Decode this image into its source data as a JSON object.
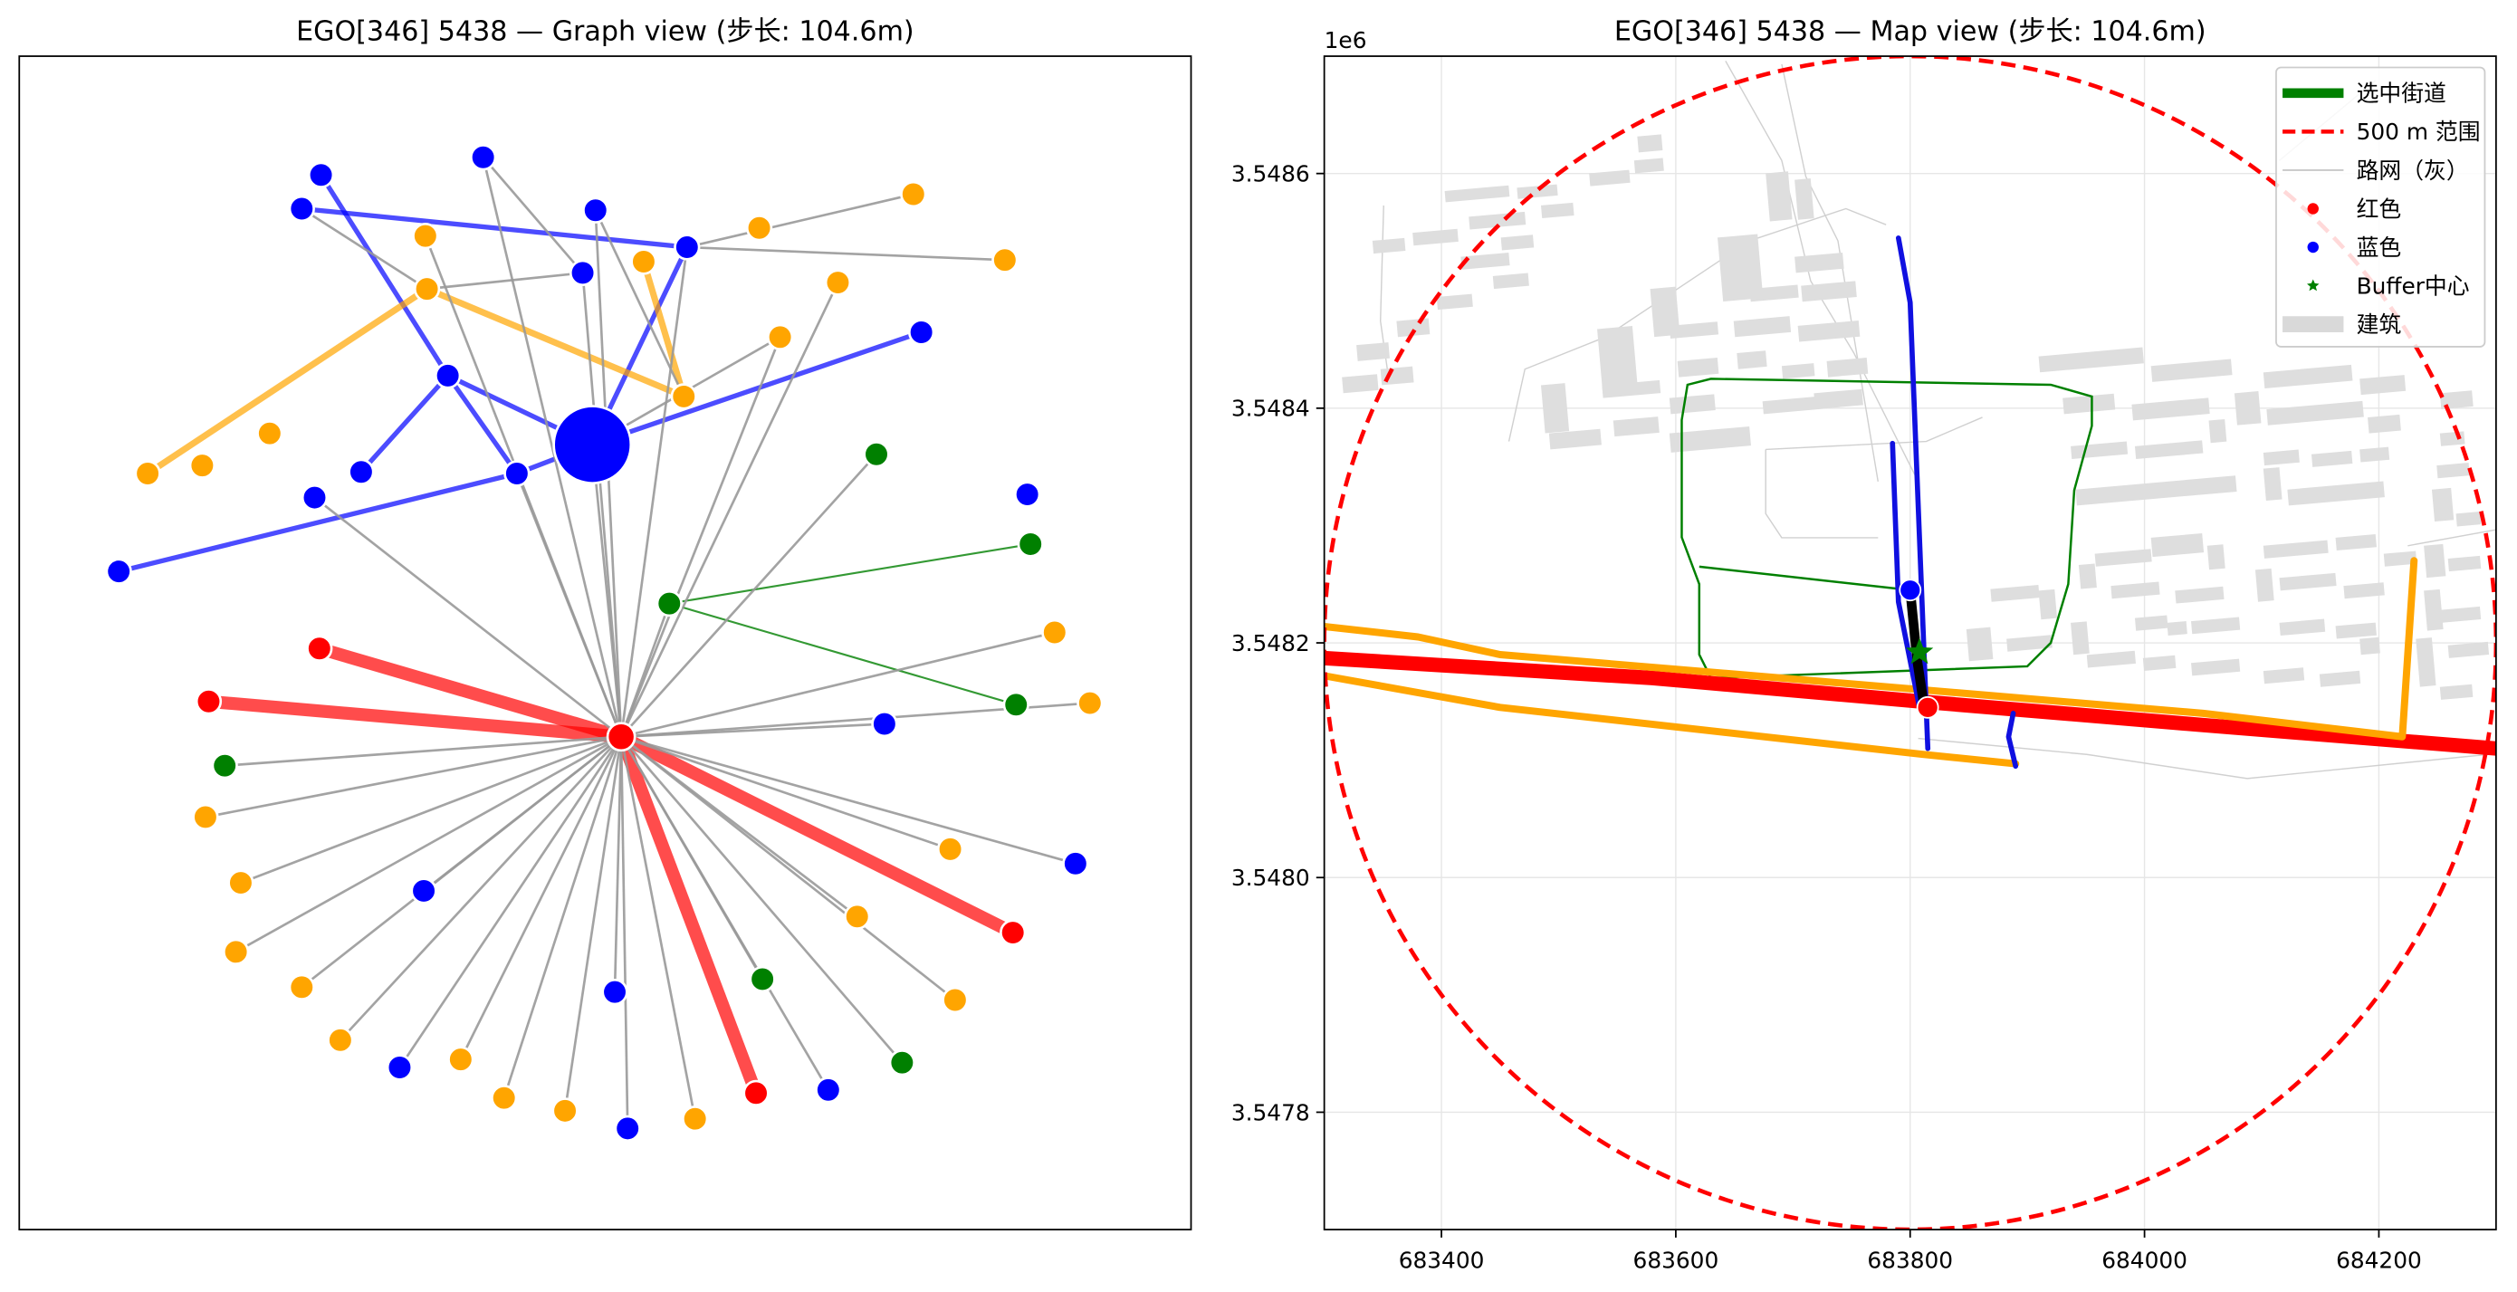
{
  "chart_data": [
    {
      "type": "network",
      "title": "EGO[346] 5438 — Graph view (步长: 104.6m)",
      "colors": {
        "red": "#ff0000",
        "blue": "#0000ff",
        "orange": "#ffa500",
        "green": "#008000",
        "gray": "#999999"
      },
      "nodes": [
        {
          "id": "ego",
          "x": 369,
          "y": 277,
          "color": "blue",
          "big": true
        },
        {
          "id": "hub",
          "x": 387,
          "y": 459,
          "color": "red"
        },
        {
          "id": "g1",
          "x": 417,
          "y": 376,
          "color": "green"
        },
        {
          "id": "b1",
          "x": 200,
          "y": 109,
          "color": "blue"
        },
        {
          "id": "b2",
          "x": 301,
          "y": 98,
          "color": "blue"
        },
        {
          "id": "b3",
          "x": 188,
          "y": 130,
          "color": "blue"
        },
        {
          "id": "b4",
          "x": 371,
          "y": 131,
          "color": "blue"
        },
        {
          "id": "b5",
          "x": 363,
          "y": 170,
          "color": "blue"
        },
        {
          "id": "b6",
          "x": 428,
          "y": 154,
          "color": "blue"
        },
        {
          "id": "b7",
          "x": 279,
          "y": 234,
          "color": "blue"
        },
        {
          "id": "b8",
          "x": 225,
          "y": 294,
          "color": "blue"
        },
        {
          "id": "b9",
          "x": 322,
          "y": 295,
          "color": "blue"
        },
        {
          "id": "b10",
          "x": 196,
          "y": 310,
          "color": "blue"
        },
        {
          "id": "b11",
          "x": 574,
          "y": 207,
          "color": "blue"
        },
        {
          "id": "b12",
          "x": 74,
          "y": 356,
          "color": "blue"
        },
        {
          "id": "b13",
          "x": 640,
          "y": 308,
          "color": "blue"
        },
        {
          "id": "b14",
          "x": 551,
          "y": 451,
          "color": "blue"
        },
        {
          "id": "b15",
          "x": 670,
          "y": 538,
          "color": "blue"
        },
        {
          "id": "b16",
          "x": 264,
          "y": 555,
          "color": "blue"
        },
        {
          "id": "b17",
          "x": 383,
          "y": 618,
          "color": "blue"
        },
        {
          "id": "b18",
          "x": 249,
          "y": 665,
          "color": "blue"
        },
        {
          "id": "b19",
          "x": 391,
          "y": 703,
          "color": "blue"
        },
        {
          "id": "b20",
          "x": 516,
          "y": 679,
          "color": "blue"
        },
        {
          "id": "o1",
          "x": 569,
          "y": 121,
          "color": "orange"
        },
        {
          "id": "o2",
          "x": 265,
          "y": 147,
          "color": "orange"
        },
        {
          "id": "o3",
          "x": 473,
          "y": 142,
          "color": "orange"
        },
        {
          "id": "o4",
          "x": 401,
          "y": 163,
          "color": "orange"
        },
        {
          "id": "o5",
          "x": 626,
          "y": 162,
          "color": "orange"
        },
        {
          "id": "o6",
          "x": 266,
          "y": 180,
          "color": "orange"
        },
        {
          "id": "o7",
          "x": 522,
          "y": 176,
          "color": "orange"
        },
        {
          "id": "o8",
          "x": 486,
          "y": 210,
          "color": "orange"
        },
        {
          "id": "o9",
          "x": 426,
          "y": 247,
          "color": "orange"
        },
        {
          "id": "o10",
          "x": 168,
          "y": 270,
          "color": "orange"
        },
        {
          "id": "o11",
          "x": 92,
          "y": 295,
          "color": "orange"
        },
        {
          "id": "o12",
          "x": 126,
          "y": 290,
          "color": "orange"
        },
        {
          "id": "o13",
          "x": 657,
          "y": 394,
          "color": "orange"
        },
        {
          "id": "o14",
          "x": 679,
          "y": 438,
          "color": "orange"
        },
        {
          "id": "o15",
          "x": 128,
          "y": 509,
          "color": "orange"
        },
        {
          "id": "o16",
          "x": 592,
          "y": 529,
          "color": "orange"
        },
        {
          "id": "o17",
          "x": 150,
          "y": 550,
          "color": "orange"
        },
        {
          "id": "o18",
          "x": 534,
          "y": 571,
          "color": "orange"
        },
        {
          "id": "o19",
          "x": 147,
          "y": 593,
          "color": "orange"
        },
        {
          "id": "o20",
          "x": 188,
          "y": 615,
          "color": "orange"
        },
        {
          "id": "o21",
          "x": 595,
          "y": 623,
          "color": "orange"
        },
        {
          "id": "o22",
          "x": 212,
          "y": 648,
          "color": "orange"
        },
        {
          "id": "o23",
          "x": 287,
          "y": 660,
          "color": "orange"
        },
        {
          "id": "o24",
          "x": 314,
          "y": 684,
          "color": "orange"
        },
        {
          "id": "o25",
          "x": 352,
          "y": 692,
          "color": "orange"
        },
        {
          "id": "o26",
          "x": 433,
          "y": 697,
          "color": "orange"
        },
        {
          "id": "g2",
          "x": 546,
          "y": 283,
          "color": "green"
        },
        {
          "id": "g3",
          "x": 642,
          "y": 339,
          "color": "green"
        },
        {
          "id": "g4",
          "x": 633,
          "y": 439,
          "color": "green"
        },
        {
          "id": "g5",
          "x": 140,
          "y": 477,
          "color": "green"
        },
        {
          "id": "g6",
          "x": 475,
          "y": 610,
          "color": "green"
        },
        {
          "id": "g7",
          "x": 562,
          "y": 662,
          "color": "green"
        },
        {
          "id": "r1",
          "x": 199,
          "y": 404,
          "color": "red"
        },
        {
          "id": "r2",
          "x": 130,
          "y": 437,
          "color": "red"
        },
        {
          "id": "r3",
          "x": 631,
          "y": 581,
          "color": "red"
        },
        {
          "id": "r4",
          "x": 471,
          "y": 681,
          "color": "red"
        }
      ],
      "edges": [
        [
          "hub",
          "r1",
          "red"
        ],
        [
          "hub",
          "r2",
          "red"
        ],
        [
          "hub",
          "r3",
          "red"
        ],
        [
          "hub",
          "r4",
          "red"
        ],
        [
          "ego",
          "b7",
          "blue"
        ],
        [
          "ego",
          "b9",
          "blue"
        ],
        [
          "ego",
          "b6",
          "blue"
        ],
        [
          "ego",
          "b11",
          "blue"
        ],
        [
          "b3",
          "b6",
          "blue"
        ],
        [
          "b1",
          "b7",
          "blue"
        ],
        [
          "b7",
          "b8",
          "blue"
        ],
        [
          "b7",
          "b9",
          "blue"
        ],
        [
          "b9",
          "b12",
          "blue"
        ],
        [
          "o6",
          "o9",
          "orange"
        ],
        [
          "o6",
          "o11",
          "orange"
        ],
        [
          "o4",
          "o9",
          "orange"
        ],
        [
          "g1",
          "g3",
          "green"
        ],
        [
          "g1",
          "g4",
          "green"
        ],
        [
          "hub",
          "ego",
          "gray"
        ],
        [
          "hub",
          "b2",
          "gray"
        ],
        [
          "hub",
          "b4",
          "gray"
        ],
        [
          "hub",
          "b5",
          "gray"
        ],
        [
          "hub",
          "b6",
          "gray"
        ],
        [
          "hub",
          "o2",
          "gray"
        ],
        [
          "hub",
          "o8",
          "gray"
        ],
        [
          "hub",
          "o7",
          "gray"
        ],
        [
          "hub",
          "b10",
          "gray"
        ],
        [
          "hub",
          "b9",
          "gray"
        ],
        [
          "hub",
          "g2",
          "gray"
        ],
        [
          "hub",
          "o13",
          "gray"
        ],
        [
          "hub",
          "o14",
          "gray"
        ],
        [
          "hub",
          "b14",
          "gray"
        ],
        [
          "hub",
          "b15",
          "gray"
        ],
        [
          "hub",
          "g5",
          "gray"
        ],
        [
          "hub",
          "o15",
          "gray"
        ],
        [
          "hub",
          "o16",
          "gray"
        ],
        [
          "hub",
          "o17",
          "gray"
        ],
        [
          "hub",
          "o18",
          "gray"
        ],
        [
          "hub",
          "o19",
          "gray"
        ],
        [
          "hub",
          "b16",
          "gray"
        ],
        [
          "hub",
          "o20",
          "gray"
        ],
        [
          "hub",
          "o21",
          "gray"
        ],
        [
          "hub",
          "o22",
          "gray"
        ],
        [
          "hub",
          "o23",
          "gray"
        ],
        [
          "hub",
          "o24",
          "gray"
        ],
        [
          "hub",
          "o25",
          "gray"
        ],
        [
          "hub",
          "b17",
          "gray"
        ],
        [
          "hub",
          "b18",
          "gray"
        ],
        [
          "hub",
          "b19",
          "gray"
        ],
        [
          "hub",
          "o26",
          "gray"
        ],
        [
          "hub",
          "b20",
          "gray"
        ],
        [
          "hub",
          "g6",
          "gray"
        ],
        [
          "hub",
          "g7",
          "gray"
        ],
        [
          "hub",
          "g1",
          "gray"
        ],
        [
          "b3",
          "o6",
          "gray"
        ],
        [
          "o6",
          "b5",
          "gray"
        ],
        [
          "b4",
          "o9",
          "gray"
        ],
        [
          "b6",
          "o1",
          "gray"
        ],
        [
          "b6",
          "o5",
          "gray"
        ],
        [
          "ego",
          "o8",
          "gray"
        ],
        [
          "b2",
          "b5",
          "gray"
        ]
      ]
    },
    {
      "type": "map",
      "title": "EGO[346] 5438 — Map view (步长: 104.6m)",
      "xlim": [
        683300,
        684300
      ],
      "ylim": [
        3547700,
        3548700
      ],
      "x_ticks": [
        "683400",
        "683600",
        "683800",
        "684000",
        "684200"
      ],
      "y_ticks": [
        "3.5478",
        "3.5480",
        "3.5482",
        "3.5484",
        "3.5486"
      ],
      "y_offset_label": "1e6",
      "circle": {
        "cx": 683800,
        "cy": 3548200,
        "r": 500
      },
      "legend": {
        "placement": "top-right",
        "entries": [
          {
            "label": "选中街道",
            "kind": "line",
            "color": "#008000"
          },
          {
            "label": "500 m 范围",
            "kind": "dash",
            "color": "#ff0000"
          },
          {
            "label": "路网（灰）",
            "kind": "thin",
            "color": "#c8c8c8"
          },
          {
            "label": "红色",
            "kind": "dot",
            "color": "#ff0000"
          },
          {
            "label": "蓝色",
            "kind": "dot",
            "color": "#0000ff"
          },
          {
            "label": "Buffer中心",
            "kind": "star",
            "color": "#008000"
          },
          {
            "label": "建筑",
            "kind": "patch",
            "color": "#d9d9d9"
          }
        ]
      },
      "streets": [
        {
          "color": "red",
          "points": [
            [
              683300,
              3548187
            ],
            [
              683580,
              3548170
            ],
            [
              683810,
              3548150
            ],
            [
              684050,
              3548130
            ],
            [
              684300,
              3548110
            ]
          ]
        },
        {
          "color": "orange",
          "points": [
            [
              683300,
              3548214
            ],
            [
              683380,
              3548205
            ],
            [
              683450,
              3548190
            ],
            [
              683810,
              3548160
            ],
            [
              684050,
              3548140
            ],
            [
              684220,
              3548120
            ],
            [
              684230,
              3548270
            ]
          ]
        },
        {
          "color": "orange",
          "points": [
            [
              683300,
              3548172
            ],
            [
              683450,
              3548145
            ],
            [
              683630,
              3548125
            ],
            [
              683810,
              3548105
            ],
            [
              683890,
              3548097
            ]
          ]
        },
        {
          "color": "blue",
          "points": [
            [
              683790,
              3548545
            ],
            [
              683800,
              3548490
            ],
            [
              683815,
              3548110
            ]
          ]
        },
        {
          "color": "blue",
          "points": [
            [
              683785,
              3548370
            ],
            [
              683790,
              3548235
            ],
            [
              683808,
              3548145
            ]
          ]
        },
        {
          "color": "blue",
          "points": [
            [
              683888,
              3548140
            ],
            [
              683884,
              3548120
            ],
            [
              683890,
              3548095
            ]
          ]
        },
        {
          "color": "black",
          "points": [
            [
              683800,
              3548245
            ],
            [
              683806,
              3548185
            ],
            [
              683812,
              3548145
            ]
          ]
        }
      ],
      "nodes": [
        {
          "x": 683815,
          "y": 3548145,
          "color": "red"
        },
        {
          "x": 683800,
          "y": 3548245,
          "color": "blue"
        }
      ],
      "buffer_center": {
        "x": 683808,
        "y": 3548192
      },
      "green_region": [
        [
          683605,
          3548390
        ],
        [
          683610,
          3548420
        ],
        [
          683630,
          3548425
        ],
        [
          683920,
          3548420
        ],
        [
          683955,
          3548410
        ],
        [
          683955,
          3548385
        ],
        [
          683940,
          3548330
        ],
        [
          683935,
          3548250
        ],
        [
          683920,
          3548200
        ],
        [
          683900,
          3548180
        ],
        [
          683630,
          3548170
        ],
        [
          683620,
          3548190
        ],
        [
          683620,
          3548250
        ],
        [
          683605,
          3548290
        ]
      ],
      "green_link": [
        [
          683800,
          3548245
        ],
        [
          683620,
          3548265
        ]
      ]
    }
  ]
}
